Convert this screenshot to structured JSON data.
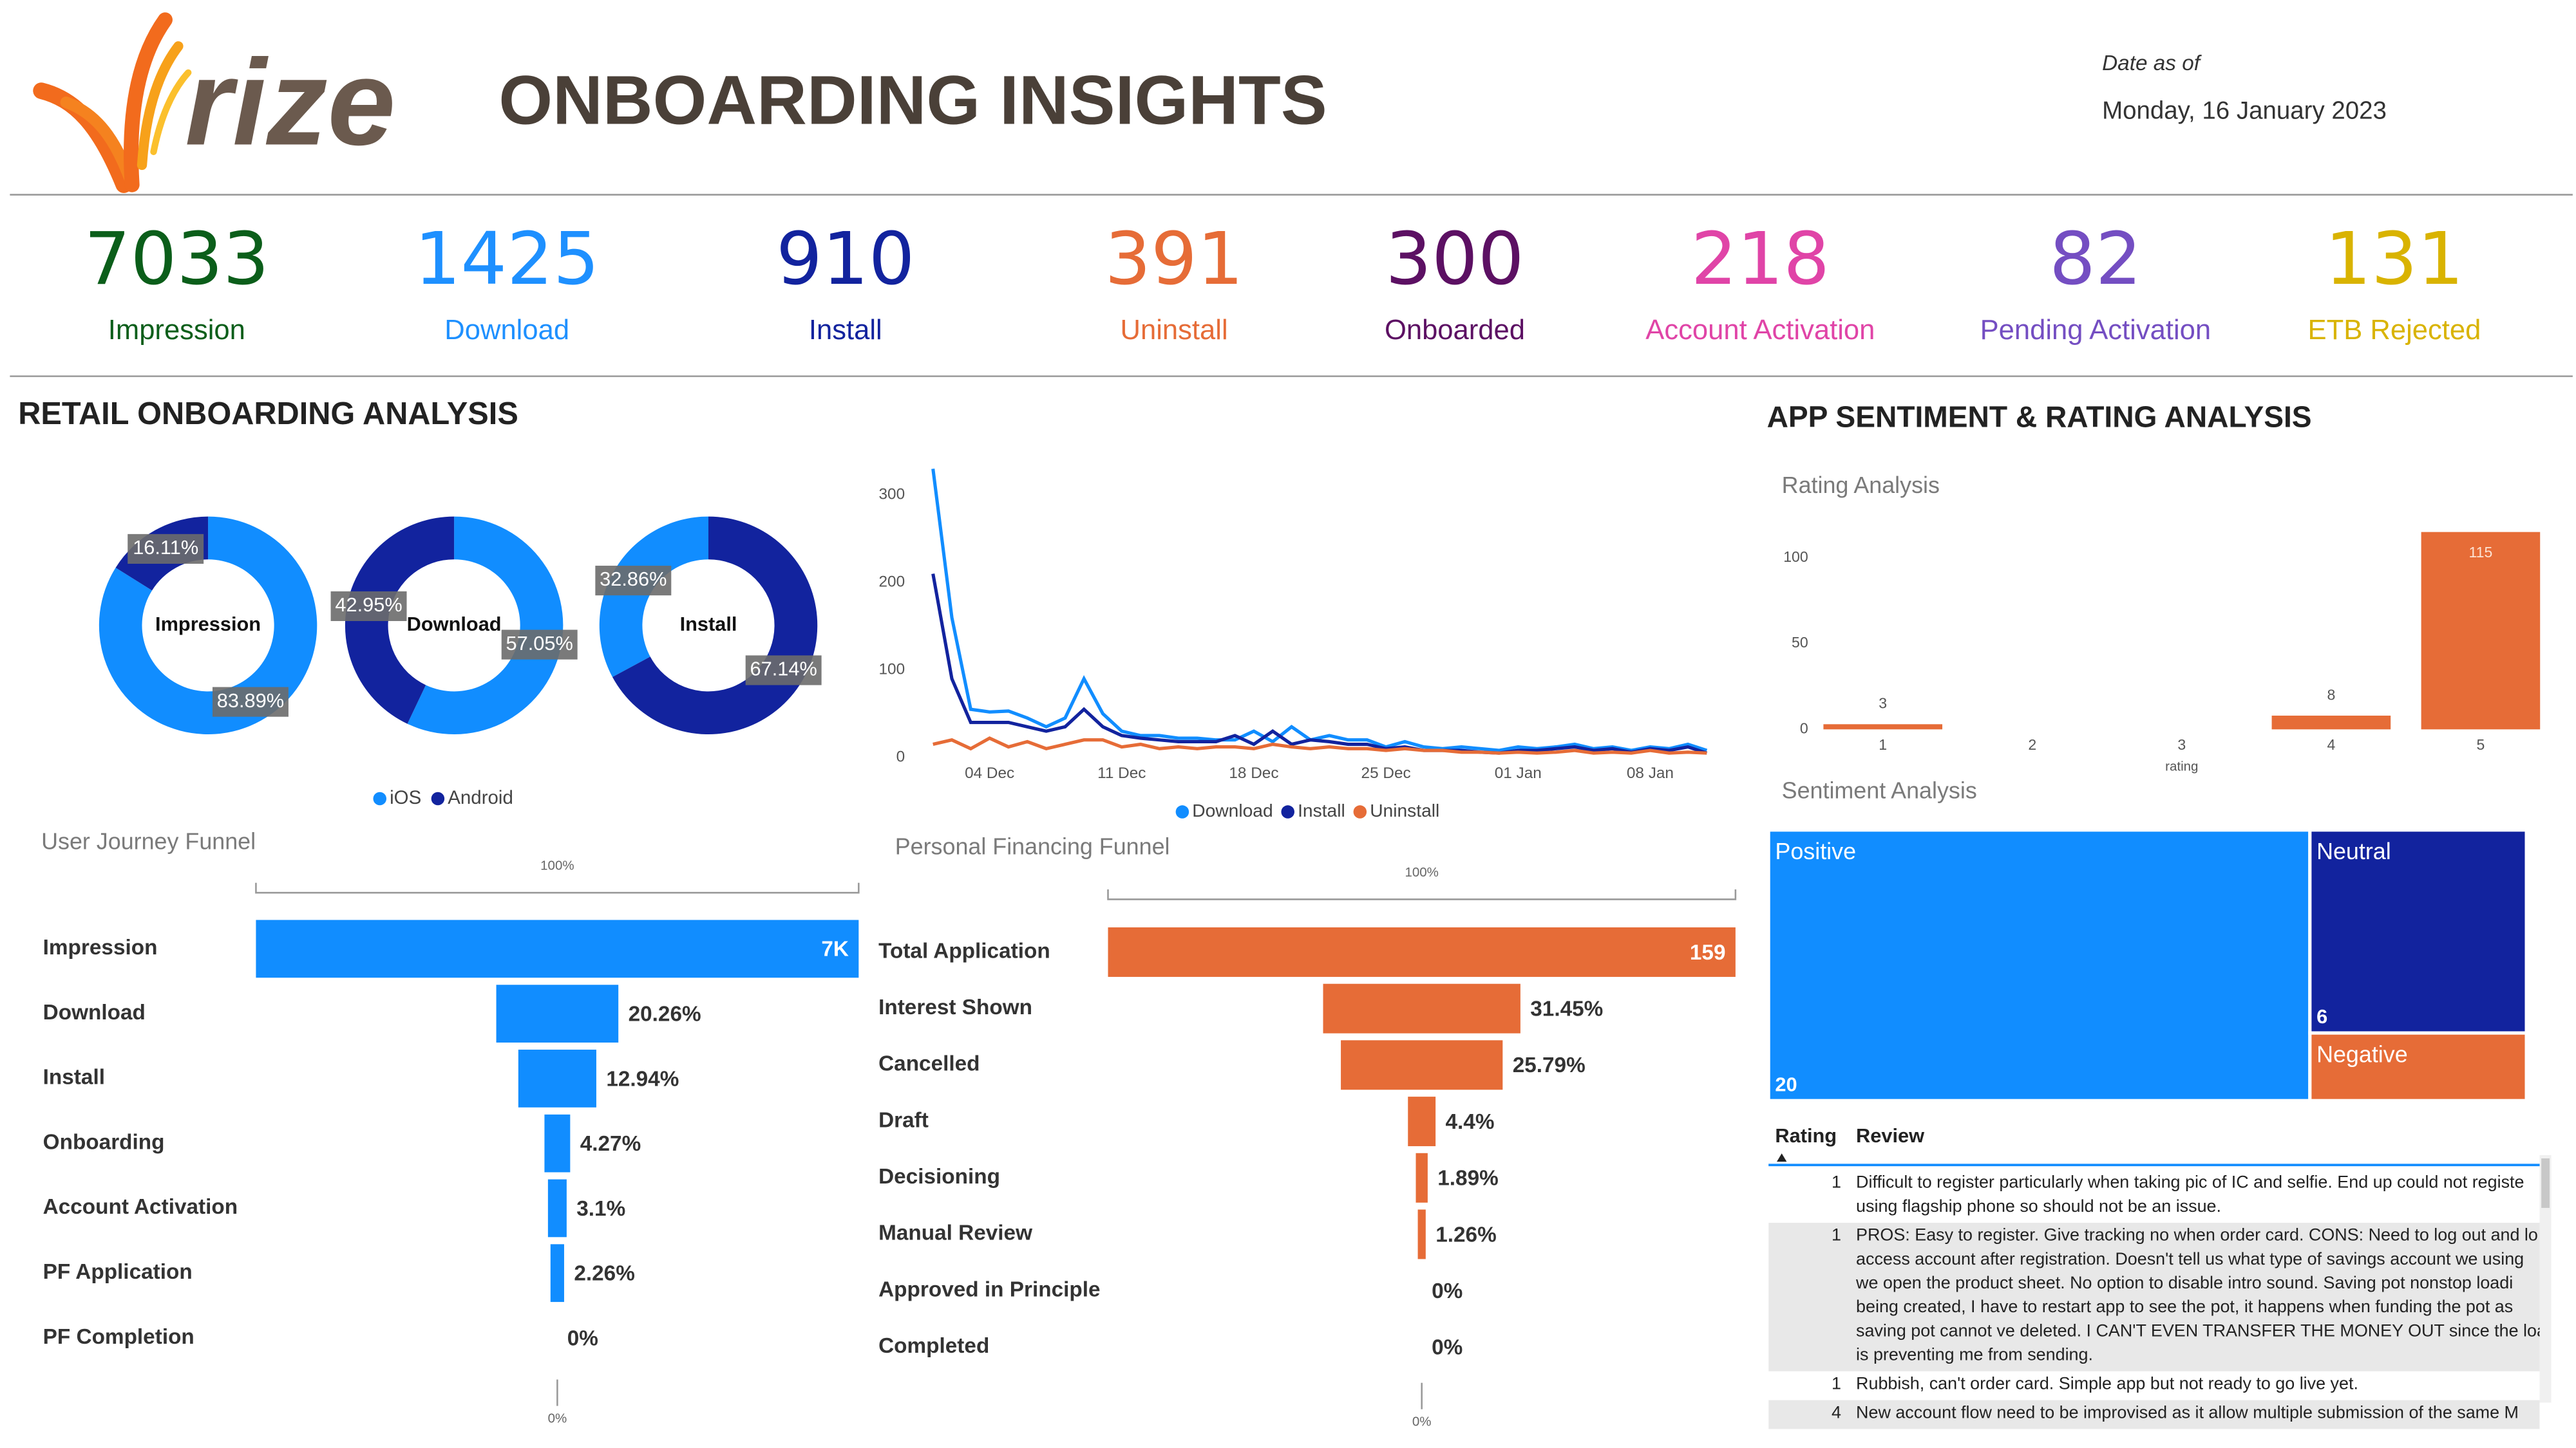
{
  "header": {
    "logo": "rize",
    "title": "ONBOARDING INSIGHTS",
    "date_label": "Date as of",
    "date": "Monday, 16 January 2023"
  },
  "kpis": [
    {
      "value": 7033,
      "label": "Impression",
      "color": "#0b5e1a"
    },
    {
      "value": 1425,
      "label": "Download",
      "color": "#1e90ff"
    },
    {
      "value": 910,
      "label": "Install",
      "color": "#12239e"
    },
    {
      "value": 391,
      "label": "Uninstall",
      "color": "#e66c37"
    },
    {
      "value": 300,
      "label": "Onboarded",
      "color": "#5c1063"
    },
    {
      "value": 218,
      "label": "Account Activation",
      "color": "#e044a7"
    },
    {
      "value": 82,
      "label": "Pending Activation",
      "color": "#744ec2"
    },
    {
      "value": 131,
      "label": "ETB Rejected",
      "color": "#d9b300"
    }
  ],
  "sections": {
    "retail": "RETAIL ONBOARDING ANALYSIS",
    "sentiment": "APP SENTIMENT & RATING ANALYSIS"
  },
  "chart_data": [
    {
      "type": "donut",
      "series": [
        {
          "name": "iOS",
          "color": "#118dff"
        },
        {
          "name": "Android",
          "color": "#12239e"
        }
      ],
      "donuts": [
        {
          "label": "Impression",
          "values": [
            83.89,
            16.11
          ],
          "value_labels": [
            "83.89%",
            "16.11%"
          ]
        },
        {
          "label": "Download",
          "values": [
            57.05,
            42.95
          ],
          "value_labels": [
            "57.05%",
            "42.95%"
          ]
        },
        {
          "label": "Install",
          "values": [
            32.86,
            67.14
          ],
          "value_labels": [
            "32.86%",
            "67.14%"
          ]
        }
      ]
    },
    {
      "type": "line",
      "categories": [
        null,
        null,
        null,
        "04 Dec",
        null,
        null,
        null,
        null,
        null,
        null,
        "11 Dec",
        null,
        null,
        null,
        null,
        null,
        null,
        "18 Dec",
        null,
        null,
        null,
        null,
        null,
        null,
        "25 Dec",
        null,
        null,
        null,
        null,
        null,
        null,
        "01 Jan",
        null,
        null,
        null,
        null,
        null,
        null,
        "08 Jan",
        null,
        null,
        null
      ],
      "series": [
        {
          "name": "Download",
          "color": "#118dff",
          "values": [
            330,
            160,
            55,
            52,
            53,
            45,
            35,
            45,
            90,
            50,
            30,
            25,
            25,
            22,
            22,
            20,
            20,
            30,
            18,
            35,
            20,
            25,
            20,
            20,
            12,
            18,
            12,
            10,
            12,
            10,
            8,
            12,
            10,
            12,
            15,
            10,
            12,
            8,
            12,
            10,
            15,
            8
          ]
        },
        {
          "name": "Install",
          "color": "#12239e",
          "values": [
            210,
            90,
            40,
            40,
            40,
            35,
            30,
            35,
            55,
            35,
            25,
            22,
            20,
            18,
            18,
            18,
            25,
            15,
            30,
            15,
            20,
            18,
            15,
            15,
            10,
            12,
            8,
            8,
            8,
            6,
            5,
            8,
            8,
            10,
            12,
            8,
            10,
            6,
            10,
            8,
            12,
            5
          ]
        },
        {
          "name": "Uninstall",
          "color": "#e66c37",
          "values": [
            15,
            20,
            10,
            22,
            12,
            18,
            10,
            15,
            20,
            20,
            12,
            15,
            10,
            12,
            10,
            12,
            12,
            10,
            15,
            12,
            10,
            12,
            10,
            10,
            8,
            10,
            8,
            8,
            6,
            6,
            5,
            6,
            5,
            6,
            8,
            5,
            6,
            5,
            8,
            5,
            6,
            5
          ]
        }
      ],
      "ylim": [
        0,
        340
      ],
      "yticks": [
        0,
        100,
        200,
        300
      ]
    },
    {
      "type": "funnel",
      "title": "User Journey Funnel",
      "color": "#118dff",
      "categories": [
        "Impression",
        "Download",
        "Install",
        "Onboarding",
        "Account Activation",
        "PF Application",
        "PF Completion"
      ],
      "values": [
        7033,
        1425,
        910,
        300,
        218,
        159,
        0
      ],
      "value_labels": [
        "7K",
        "20.26%",
        "12.94%",
        "4.27%",
        "3.1%",
        "2.26%",
        "0%"
      ],
      "scale_labels": [
        "100%",
        "0%"
      ]
    },
    {
      "type": "funnel",
      "title": "Personal Financing Funnel",
      "color": "#e66c37",
      "categories": [
        "Total Application",
        "Interest Shown",
        "Cancelled",
        "Draft",
        "Decisioning",
        "Manual Review",
        "Approved in Principle",
        "Completed"
      ],
      "values": [
        159,
        50,
        41,
        7,
        3,
        2,
        0,
        0
      ],
      "value_labels": [
        "159",
        "31.45%",
        "25.79%",
        "4.4%",
        "1.89%",
        "1.26%",
        "0%",
        "0%"
      ],
      "scale_labels": [
        "100%",
        "0%"
      ]
    },
    {
      "type": "bar",
      "title": "Rating Analysis",
      "x_label": "rating",
      "color": "#e66c37",
      "categories": [
        "1",
        "2",
        "3",
        "4",
        "5"
      ],
      "values": [
        3,
        null,
        null,
        8,
        115
      ],
      "ylim": [
        0,
        125
      ],
      "yticks": [
        0,
        50,
        100
      ]
    },
    {
      "type": "treemap",
      "title": "Sentiment Analysis",
      "categories": [
        "Positive",
        "Neutral",
        "Negative"
      ],
      "values": [
        20,
        6,
        2
      ],
      "colors": [
        "#118dff",
        "#12239e",
        "#e66c37"
      ]
    }
  ],
  "reviews": {
    "columns": [
      "Rating",
      "Review"
    ],
    "rows": [
      {
        "rating": 1,
        "lines": [
          "Difficult to register particularly when taking pic of IC and selfie. End up could not registe",
          "using flagship phone so should not be an issue."
        ]
      },
      {
        "rating": 1,
        "lines": [
          "PROS: Easy to register. Give tracking no when order card. CONS: Need to log out and lo",
          "access account after registration. Doesn't tell us what type of savings account we using",
          "we open the product sheet. No option to disable intro sound. Saving pot nonstop loadi",
          "being created, I have to restart app to see the pot, it happens when funding the pot as",
          "saving pot cannot ve deleted. I CAN'T EVEN TRANSFER THE MONEY OUT since the load",
          "is preventing me from sending."
        ]
      },
      {
        "rating": 1,
        "lines": [
          "Rubbish, can't order card. Simple app but not ready to go live yet."
        ]
      },
      {
        "rating": 4,
        "lines": [
          "New account flow need to be improvised as it allow multiple submission of the same M"
        ]
      }
    ]
  }
}
